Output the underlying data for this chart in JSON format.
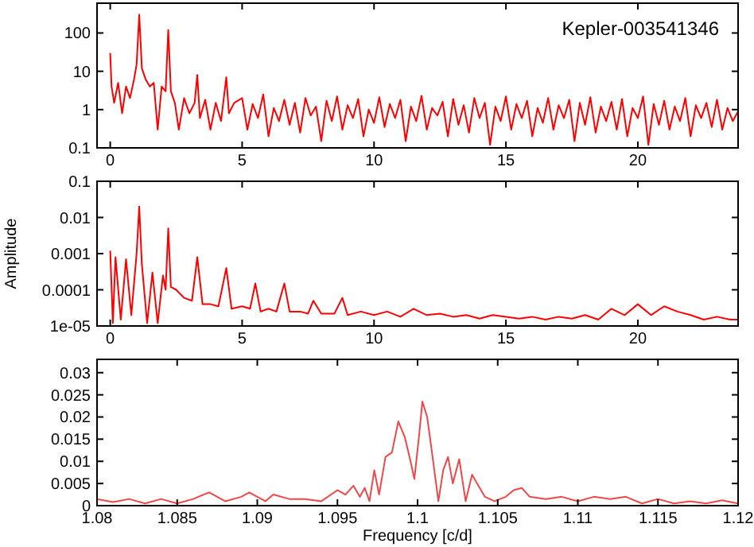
{
  "chart_data": [
    {
      "type": "line",
      "annotations": [
        "Kepler-003541346"
      ],
      "log": "y",
      "grid": false,
      "xlim": [
        -0.5,
        23.8
      ],
      "xticks": [
        0,
        5,
        10,
        15,
        20
      ],
      "ylim": [
        0.1,
        600
      ],
      "yticks": [
        0.1,
        1,
        10,
        100
      ],
      "series": [
        {
          "color": "#ff0000",
          "x": [
            0,
            0.05,
            0.15,
            0.3,
            0.45,
            0.6,
            0.75,
            0.9,
            1.0,
            1.1,
            1.2,
            1.35,
            1.5,
            1.65,
            1.8,
            1.95,
            2.1,
            2.2,
            2.3,
            2.45,
            2.6,
            2.8,
            3.0,
            3.2,
            3.3,
            3.4,
            3.6,
            3.8,
            4.0,
            4.2,
            4.4,
            4.5,
            4.7,
            5.0,
            5.2,
            5.4,
            5.6,
            5.8,
            6.0,
            6.2,
            6.4,
            6.6,
            6.8,
            7.0,
            7.2,
            7.4,
            7.6,
            7.8,
            8.0,
            8.2,
            8.4,
            8.6,
            8.8,
            9.0,
            9.2,
            9.4,
            9.6,
            9.8,
            10.0,
            10.2,
            10.4,
            10.6,
            10.8,
            11.0,
            11.2,
            11.4,
            11.6,
            11.8,
            12.0,
            12.2,
            12.4,
            12.6,
            12.8,
            13.0,
            13.2,
            13.4,
            13.6,
            13.8,
            14.0,
            14.2,
            14.4,
            14.6,
            14.8,
            15.0,
            15.2,
            15.4,
            15.6,
            15.8,
            16.0,
            16.2,
            16.4,
            16.6,
            16.8,
            17.0,
            17.2,
            17.4,
            17.6,
            17.8,
            18.0,
            18.2,
            18.4,
            18.6,
            18.8,
            19.0,
            19.2,
            19.4,
            19.6,
            19.8,
            20.0,
            20.2,
            20.4,
            20.6,
            20.8,
            21.0,
            21.2,
            21.4,
            21.6,
            21.8,
            22.0,
            22.2,
            22.4,
            22.6,
            22.8,
            23.0,
            23.2,
            23.4,
            23.6,
            23.8
          ],
          "values": [
            30,
            4,
            1.5,
            5,
            0.8,
            4,
            2,
            6,
            15,
            300,
            12,
            6,
            4,
            5,
            0.3,
            4,
            3,
            120,
            3,
            1.5,
            0.3,
            2,
            0.8,
            1.5,
            8,
            0.6,
            1.8,
            0.3,
            1.5,
            0.5,
            7,
            0.8,
            1.5,
            2,
            0.3,
            1.4,
            0.6,
            2.5,
            0.2,
            1.1,
            0.5,
            1.8,
            0.4,
            1.5,
            0.25,
            2,
            0.7,
            1.2,
            0.15,
            1.7,
            0.5,
            2.2,
            0.3,
            1.3,
            0.6,
            1.9,
            0.2,
            1,
            0.45,
            2.1,
            0.35,
            1.4,
            0.6,
            1.8,
            0.15,
            1.2,
            0.5,
            2.3,
            0.3,
            1.1,
            0.7,
            1.6,
            0.2,
            1.9,
            0.4,
            1.3,
            0.25,
            2,
            0.6,
            1.5,
            0.12,
            1.2,
            0.5,
            2.2,
            0.3,
            1.4,
            0.6,
            1.7,
            0.2,
            1.1,
            0.45,
            2,
            0.3,
            1.3,
            0.6,
            1.8,
            0.15,
            1.5,
            0.4,
            2.1,
            0.25,
            1.2,
            0.5,
            1.6,
            0.3,
            1.9,
            0.2,
            1.1,
            0.6,
            2.2,
            0.12,
            1.4,
            0.4,
            1.7,
            0.3,
            1.2,
            0.5,
            2,
            0.2,
            1.3,
            0.6,
            1.5,
            0.35,
            1.8,
            0.3,
            1.1,
            0.5,
            0.9
          ]
        }
      ]
    },
    {
      "type": "line",
      "ylabel": "Amplitude",
      "log": "y",
      "grid": false,
      "xlim": [
        -0.5,
        23.8
      ],
      "xticks": [
        0,
        5,
        10,
        15,
        20
      ],
      "ylim": [
        1e-05,
        0.1
      ],
      "yticks": [
        {
          "value": 1e-05,
          "label": "1e-05"
        },
        {
          "value": 0.0001,
          "label": "0.0001"
        },
        {
          "value": 0.001,
          "label": "0.001"
        },
        0.01,
        0.1
      ],
      "series": [
        {
          "color": "#ff0000",
          "x": [
            0,
            0.1,
            0.2,
            0.4,
            0.6,
            0.8,
            1.0,
            1.1,
            1.2,
            1.4,
            1.6,
            1.8,
            2.0,
            2.1,
            2.2,
            2.3,
            2.5,
            2.8,
            3.1,
            3.3,
            3.5,
            3.8,
            4.1,
            4.4,
            4.6,
            5.0,
            5.3,
            5.5,
            5.7,
            6.0,
            6.3,
            6.6,
            6.8,
            7.2,
            7.5,
            7.7,
            8.0,
            8.5,
            8.8,
            9.0,
            9.5,
            10,
            10.5,
            11,
            11.5,
            12,
            12.5,
            13,
            13.5,
            14,
            14.5,
            15,
            15.5,
            16,
            16.5,
            17,
            17.5,
            18,
            18.5,
            19,
            19.5,
            20,
            20.5,
            21,
            21.5,
            22,
            22.5,
            23,
            23.5,
            23.8
          ],
          "values": [
            0.0012,
            1.2e-05,
            0.0008,
            1.5e-05,
            0.0007,
            2e-05,
            0.001,
            0.02,
            0.0005,
            1.2e-05,
            0.0003,
            1.2e-05,
            0.00025,
            0.0001,
            0.005,
            0.00012,
            0.0001,
            6e-05,
            5e-05,
            0.0008,
            4e-05,
            4e-05,
            3.5e-05,
            0.0004,
            3e-05,
            3.5e-05,
            3e-05,
            0.00015,
            2.5e-05,
            3e-05,
            2.5e-05,
            0.00015,
            2.5e-05,
            2.5e-05,
            2.2e-05,
            5e-05,
            2.2e-05,
            2.2e-05,
            6e-05,
            2e-05,
            2.5e-05,
            2e-05,
            2.5e-05,
            1.8e-05,
            3e-05,
            2e-05,
            2.2e-05,
            1.8e-05,
            2e-05,
            1.6e-05,
            2e-05,
            1.8e-05,
            1.6e-05,
            1.8e-05,
            1.5e-05,
            1.8e-05,
            1.6e-05,
            2e-05,
            1.5e-05,
            3e-05,
            2e-05,
            4e-05,
            2e-05,
            3.5e-05,
            2.5e-05,
            2e-05,
            1.5e-05,
            1.8e-05,
            1.5e-05,
            1.5e-05
          ]
        }
      ]
    },
    {
      "type": "line",
      "xlabel": "Frequency [c/d]",
      "grid": false,
      "xlim": [
        1.08,
        1.12
      ],
      "xticks": [
        1.08,
        1.085,
        1.09,
        1.095,
        1.1,
        1.105,
        1.11,
        1.115,
        1.12
      ],
      "ylim": [
        0,
        0.033
      ],
      "yticks": [
        0,
        0.005,
        0.01,
        0.015,
        0.02,
        0.025,
        0.03
      ],
      "series": [
        {
          "color": "#f04848",
          "x": [
            1.08,
            1.081,
            1.082,
            1.083,
            1.084,
            1.085,
            1.086,
            1.087,
            1.088,
            1.089,
            1.0895,
            1.0905,
            1.091,
            1.092,
            1.093,
            1.094,
            1.095,
            1.0955,
            1.096,
            1.0964,
            1.0967,
            1.097,
            1.0973,
            1.0976,
            1.098,
            1.0984,
            1.0988,
            1.0992,
            1.0995,
            1.0998,
            1.1001,
            1.1003,
            1.1006,
            1.1009,
            1.1013,
            1.1016,
            1.1019,
            1.1022,
            1.1026,
            1.103,
            1.1034,
            1.1038,
            1.1042,
            1.1048,
            1.1055,
            1.106,
            1.1065,
            1.107,
            1.108,
            1.109,
            1.11,
            1.111,
            1.112,
            1.113,
            1.114,
            1.115,
            1.116,
            1.117,
            1.118,
            1.119,
            1.12
          ],
          "values": [
            0.0015,
            0.0008,
            0.0015,
            0.0005,
            0.0015,
            0.0005,
            0.0015,
            0.003,
            0.001,
            0.002,
            0.003,
            0.001,
            0.0025,
            0.0015,
            0.0015,
            0.001,
            0.0035,
            0.0025,
            0.0045,
            0.002,
            0.004,
            0.001,
            0.008,
            0.0025,
            0.011,
            0.012,
            0.019,
            0.0155,
            0.011,
            0.006,
            0.016,
            0.0235,
            0.02,
            0.012,
            0.001,
            0.008,
            0.011,
            0.005,
            0.0105,
            0.001,
            0.007,
            0.0045,
            0.002,
            0.001,
            0.002,
            0.0035,
            0.004,
            0.002,
            0.0015,
            0.002,
            0.001,
            0.002,
            0.0015,
            0.002,
            0.0005,
            0.0015,
            0.0005,
            0.001,
            0.0005,
            0.0012,
            0.0005
          ]
        }
      ]
    }
  ]
}
